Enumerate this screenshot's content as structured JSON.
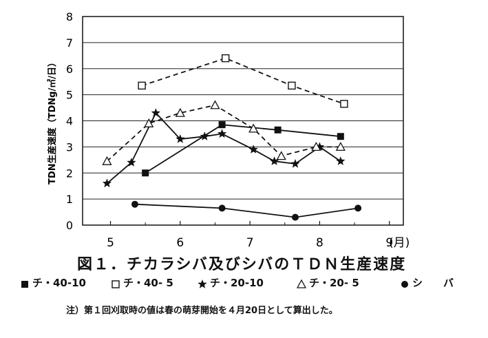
{
  "chart_data": {
    "type": "line",
    "title": "図１．チカラシバ及びシバのＴＤＮ生産速度",
    "ylabel": "TDN生産速度（TDNg/㎡/日）",
    "ylim": [
      0,
      8
    ],
    "y_ticks": [
      "0",
      "1",
      "2",
      "3",
      "4",
      "5",
      "6",
      "7",
      "8"
    ],
    "xlim": [
      4.6,
      9.2
    ],
    "x_ticks": [
      {
        "value": 5,
        "label": "5"
      },
      {
        "value": 6,
        "label": "6"
      },
      {
        "value": 7,
        "label": "7"
      },
      {
        "value": 8,
        "label": "8"
      },
      {
        "value": 9,
        "label": "9"
      }
    ],
    "x_unit_label": "(月)",
    "grid": "horizontal",
    "series": [
      {
        "name": "チ・40-10",
        "marker": "square-filled",
        "dash": "solid",
        "points": [
          [
            5.5,
            2.0
          ],
          [
            6.6,
            3.85
          ],
          [
            7.4,
            3.65
          ],
          [
            8.3,
            3.4
          ]
        ]
      },
      {
        "name": "チ・40- 5",
        "marker": "square-open",
        "dash": "dashed",
        "points": [
          [
            5.45,
            5.35
          ],
          [
            6.65,
            6.4
          ],
          [
            7.6,
            5.35
          ],
          [
            8.35,
            4.65
          ]
        ]
      },
      {
        "name": "チ・20-10",
        "marker": "star",
        "dash": "solid",
        "points": [
          [
            4.95,
            1.6
          ],
          [
            5.3,
            2.4
          ],
          [
            5.65,
            4.3
          ],
          [
            6.0,
            3.3
          ],
          [
            6.35,
            3.4
          ],
          [
            6.6,
            3.5
          ],
          [
            7.05,
            2.9
          ],
          [
            7.35,
            2.45
          ],
          [
            7.65,
            2.35
          ],
          [
            8.0,
            3.0
          ],
          [
            8.3,
            2.45
          ]
        ]
      },
      {
        "name": "チ・20- 5",
        "marker": "triangle-open",
        "dash": "dashed",
        "points": [
          [
            4.95,
            2.45
          ],
          [
            5.55,
            3.9
          ],
          [
            6.0,
            4.3
          ],
          [
            6.5,
            4.6
          ],
          [
            7.05,
            3.7
          ],
          [
            7.45,
            2.65
          ],
          [
            7.95,
            3.0
          ],
          [
            8.3,
            3.0
          ]
        ]
      },
      {
        "name": "シ　　バ",
        "marker": "circle-filled",
        "dash": "solid",
        "points": [
          [
            5.35,
            0.8
          ],
          [
            6.6,
            0.65
          ],
          [
            7.65,
            0.3
          ],
          [
            8.55,
            0.65
          ]
        ]
      }
    ]
  },
  "figure": {
    "title": "図１．チカラシバ及びシバのＴＤＮ生産速度",
    "legend": [
      "チ・40-10",
      "チ・40- 5",
      "チ・20-10",
      "チ・20- 5",
      "シ　　バ"
    ],
    "footnote": "注）第１回刈取時の値は春の萌芽開始を４月20日として算出した。"
  }
}
